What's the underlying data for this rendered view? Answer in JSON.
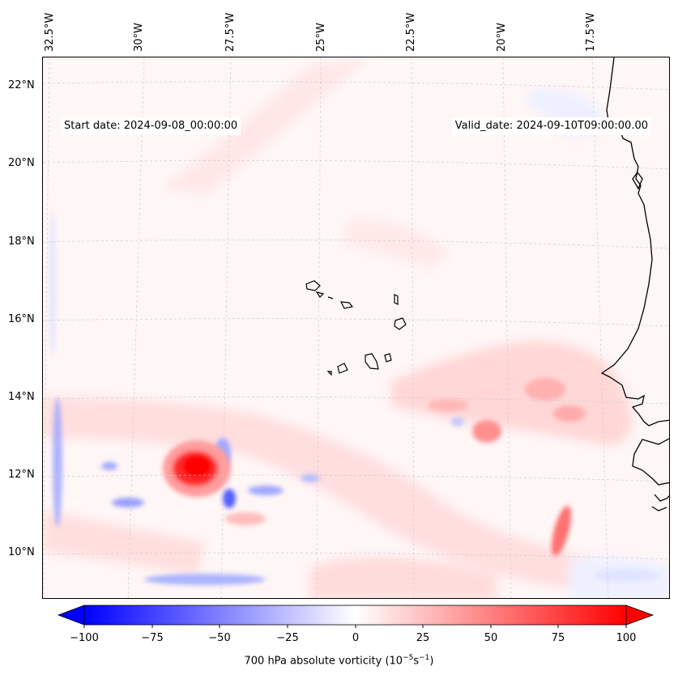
{
  "map": {
    "start_date": "Start date: 2024-09-08_00:00:00",
    "valid_date": "Valid_date: 2024-09-10T09:00:00.00",
    "longitude_labels": [
      "32.5°W",
      "30°W",
      "27.5°W",
      "25°W",
      "22.5°W",
      "20°W",
      "17.5°W"
    ],
    "latitude_labels": [
      "22°N",
      "20°N",
      "18°N",
      "16°N",
      "14°N",
      "12°N",
      "10°N"
    ],
    "variable": "700 hPa absolute vorticity"
  },
  "colorbar": {
    "label": "700 hPa absolute vorticity (10",
    "label_exp": "−5",
    "label_unit": "s",
    "label_exp2": "−1",
    "label_close": ")",
    "ticks": [
      "−100",
      "−75",
      "−50",
      "−25",
      "0",
      "25",
      "50",
      "75",
      "100"
    ],
    "min": -100,
    "max": 100,
    "negative_color": "#0000ff",
    "positive_color": "#ff0000"
  }
}
